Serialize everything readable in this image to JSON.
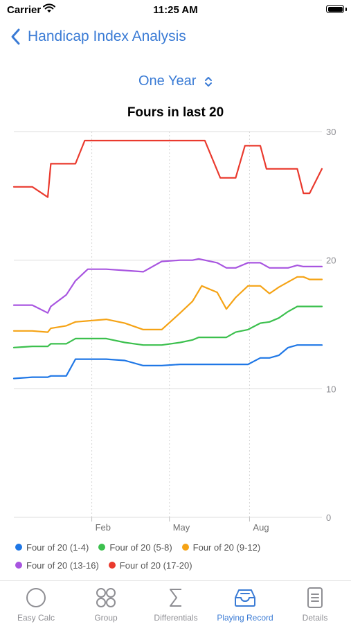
{
  "status_bar": {
    "carrier": "Carrier",
    "time": "11:25 AM"
  },
  "nav": {
    "back_label": "Handicap Index Analysis"
  },
  "range_selector": {
    "label": "One Year"
  },
  "colors": {
    "accent": "#3a7bd5",
    "blue": "#1f77e6",
    "green": "#3cc04e",
    "orange": "#f5a315",
    "purple": "#a855e0",
    "red": "#ea3a2e"
  },
  "chart_data": {
    "type": "line",
    "title": "Fours in last 20",
    "ylim": [
      0,
      30
    ],
    "xlim": [
      0,
      1
    ],
    "y_ticks": [
      0,
      10,
      20,
      30
    ],
    "x_ticks": [
      {
        "label": "Feb",
        "x": 0.253
      },
      {
        "label": "May",
        "x": 0.505
      },
      {
        "label": "Aug",
        "x": 0.765
      }
    ],
    "grid": true,
    "legend": "bottom",
    "series": [
      {
        "name": "Four of 20 (1-4)",
        "color": "#1f77e6",
        "points": [
          [
            0,
            10.8
          ],
          [
            0.06,
            10.9
          ],
          [
            0.11,
            10.9
          ],
          [
            0.12,
            11.0
          ],
          [
            0.17,
            11.0
          ],
          [
            0.2,
            12.3
          ],
          [
            0.3,
            12.3
          ],
          [
            0.36,
            12.2
          ],
          [
            0.42,
            11.8
          ],
          [
            0.48,
            11.8
          ],
          [
            0.54,
            11.9
          ],
          [
            0.6,
            11.9
          ],
          [
            0.66,
            11.9
          ],
          [
            0.72,
            11.9
          ],
          [
            0.76,
            11.9
          ],
          [
            0.8,
            12.4
          ],
          [
            0.83,
            12.4
          ],
          [
            0.86,
            12.6
          ],
          [
            0.89,
            13.2
          ],
          [
            0.92,
            13.4
          ],
          [
            1,
            13.4
          ]
        ]
      },
      {
        "name": "Four of 20 (5-8)",
        "color": "#3cc04e",
        "points": [
          [
            0,
            13.2
          ],
          [
            0.06,
            13.3
          ],
          [
            0.11,
            13.3
          ],
          [
            0.12,
            13.5
          ],
          [
            0.17,
            13.5
          ],
          [
            0.2,
            13.9
          ],
          [
            0.3,
            13.9
          ],
          [
            0.36,
            13.6
          ],
          [
            0.42,
            13.4
          ],
          [
            0.48,
            13.4
          ],
          [
            0.54,
            13.6
          ],
          [
            0.58,
            13.8
          ],
          [
            0.6,
            14.0
          ],
          [
            0.66,
            14.0
          ],
          [
            0.69,
            14.0
          ],
          [
            0.72,
            14.4
          ],
          [
            0.76,
            14.6
          ],
          [
            0.8,
            15.1
          ],
          [
            0.83,
            15.2
          ],
          [
            0.86,
            15.5
          ],
          [
            0.89,
            16.0
          ],
          [
            0.92,
            16.4
          ],
          [
            1,
            16.4
          ]
        ]
      },
      {
        "name": "Four of 20 (9-12)",
        "color": "#f5a315",
        "points": [
          [
            0,
            14.5
          ],
          [
            0.06,
            14.5
          ],
          [
            0.11,
            14.4
          ],
          [
            0.12,
            14.7
          ],
          [
            0.17,
            14.9
          ],
          [
            0.2,
            15.2
          ],
          [
            0.3,
            15.4
          ],
          [
            0.36,
            15.1
          ],
          [
            0.42,
            14.6
          ],
          [
            0.48,
            14.6
          ],
          [
            0.54,
            15.9
          ],
          [
            0.58,
            16.8
          ],
          [
            0.61,
            18.0
          ],
          [
            0.66,
            17.5
          ],
          [
            0.69,
            16.2
          ],
          [
            0.72,
            17.1
          ],
          [
            0.76,
            18.0
          ],
          [
            0.8,
            18.0
          ],
          [
            0.83,
            17.4
          ],
          [
            0.86,
            17.9
          ],
          [
            0.89,
            18.3
          ],
          [
            0.92,
            18.7
          ],
          [
            0.94,
            18.7
          ],
          [
            0.96,
            18.5
          ],
          [
            1,
            18.5
          ]
        ]
      },
      {
        "name": "Four of 20 (13-16)",
        "color": "#a855e0",
        "points": [
          [
            0,
            16.5
          ],
          [
            0.06,
            16.5
          ],
          [
            0.11,
            15.9
          ],
          [
            0.12,
            16.4
          ],
          [
            0.17,
            17.3
          ],
          [
            0.2,
            18.4
          ],
          [
            0.24,
            19.3
          ],
          [
            0.3,
            19.3
          ],
          [
            0.36,
            19.2
          ],
          [
            0.42,
            19.1
          ],
          [
            0.48,
            19.9
          ],
          [
            0.54,
            20.0
          ],
          [
            0.58,
            20.0
          ],
          [
            0.6,
            20.1
          ],
          [
            0.66,
            19.8
          ],
          [
            0.69,
            19.4
          ],
          [
            0.72,
            19.4
          ],
          [
            0.76,
            19.8
          ],
          [
            0.8,
            19.8
          ],
          [
            0.83,
            19.4
          ],
          [
            0.86,
            19.4
          ],
          [
            0.89,
            19.4
          ],
          [
            0.92,
            19.6
          ],
          [
            0.94,
            19.5
          ],
          [
            1,
            19.5
          ]
        ]
      },
      {
        "name": "Four of 20 (17-20)",
        "color": "#ea3a2e",
        "points": [
          [
            0,
            25.7
          ],
          [
            0.06,
            25.7
          ],
          [
            0.11,
            24.9
          ],
          [
            0.12,
            27.5
          ],
          [
            0.2,
            27.5
          ],
          [
            0.23,
            29.3
          ],
          [
            0.3,
            29.3
          ],
          [
            0.36,
            29.3
          ],
          [
            0.42,
            29.3
          ],
          [
            0.48,
            29.3
          ],
          [
            0.54,
            29.3
          ],
          [
            0.6,
            29.3
          ],
          [
            0.62,
            29.3
          ],
          [
            0.67,
            26.4
          ],
          [
            0.72,
            26.4
          ],
          [
            0.75,
            28.9
          ],
          [
            0.8,
            28.9
          ],
          [
            0.82,
            27.1
          ],
          [
            0.86,
            27.1
          ],
          [
            0.92,
            27.1
          ],
          [
            0.94,
            25.2
          ],
          [
            0.96,
            25.2
          ],
          [
            1,
            27.1
          ]
        ]
      }
    ]
  },
  "tabs": [
    {
      "label": "Easy Calc",
      "icon": "circle-icon"
    },
    {
      "label": "Group",
      "icon": "four-circles-icon"
    },
    {
      "label": "Differentials",
      "icon": "sigma-icon"
    },
    {
      "label": "Playing Record",
      "icon": "tray-icon"
    },
    {
      "label": "Details",
      "icon": "document-icon"
    }
  ]
}
